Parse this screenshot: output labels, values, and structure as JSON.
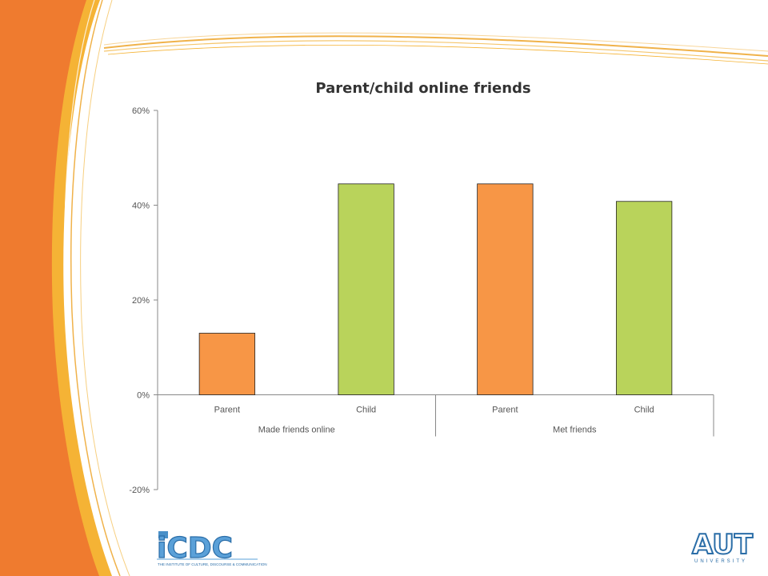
{
  "slide": {
    "colors": {
      "orange_band": "#ef7b2f",
      "gold_band": "#f5b335",
      "swoosh": "#f0b24a"
    }
  },
  "chart_data": {
    "type": "bar",
    "title": "Parent/child online friends",
    "categories": [
      "Parent",
      "Child",
      "Parent",
      "Child"
    ],
    "groups": [
      {
        "label": "Made friends online",
        "categories": [
          "Parent",
          "Child"
        ]
      },
      {
        "label": "Met friends",
        "categories": [
          "Parent",
          "Child"
        ]
      }
    ],
    "values": [
      0.13,
      0.445,
      0.445,
      0.408
    ],
    "colors": [
      "#f79646",
      "#b9d35b",
      "#f79646",
      "#b9d35b"
    ],
    "ylim": [
      -0.2,
      0.6
    ],
    "yticks": [
      0.6,
      0.4,
      0.2,
      0,
      -0.2
    ],
    "ytick_labels": [
      "60%",
      "40%",
      "20%",
      "0%",
      "-20%"
    ],
    "xlabel": "",
    "ylabel": "",
    "grid": false,
    "legend": "none"
  },
  "logos": {
    "left_logo_text": "iCDC",
    "left_logo_caption": "THE INSTITUTE OF CULTURE, DISCOURSE & COMMUNICATION",
    "right_logo_text": "AUT",
    "right_logo_caption": "UNIVERSITY"
  }
}
